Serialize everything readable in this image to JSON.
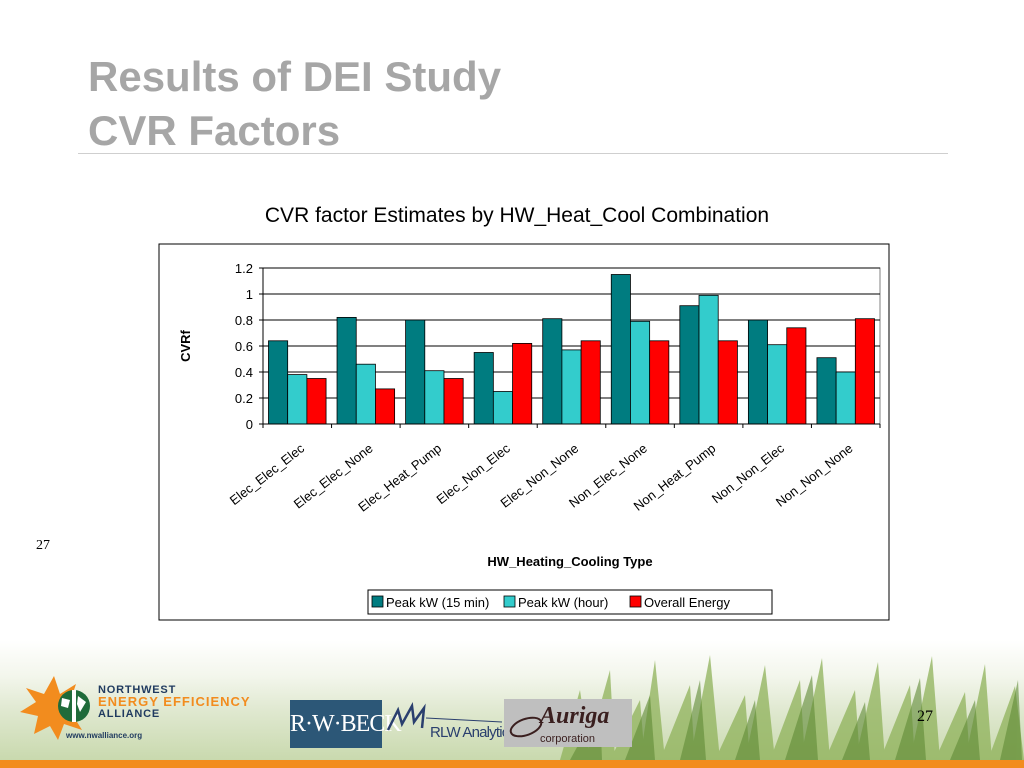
{
  "slide": {
    "title_line1": "Results of DEI Study",
    "title_line2": "CVR Factors",
    "slide_number_left": "27",
    "slide_number_right": "27"
  },
  "chart_data": {
    "type": "bar",
    "title": "CVR factor Estimates by HW_Heat_Cool Combination",
    "xlabel": "HW_Heating_Cooling Type",
    "ylabel": "CVRf",
    "ylim": [
      0,
      1.2
    ],
    "yticks": [
      "1.2",
      "1",
      "0.8",
      "0.6",
      "0.4",
      "0.2",
      "0"
    ],
    "grid": true,
    "legend_position": "bottom",
    "categories": [
      "Elec_Elec_Elec",
      "Elec_Elec_None",
      "Elec_Heat_Pump",
      "Elec_Non_Elec",
      "Elec_Non_None",
      "Non_Elec_None",
      "Non_Heat_Pump",
      "Non_Non_Elec",
      "Non_Non_None"
    ],
    "series": [
      {
        "name": "Peak kW (15 min)",
        "color": "#007c80",
        "values": [
          0.64,
          0.82,
          0.8,
          0.55,
          0.81,
          1.15,
          0.91,
          0.8,
          0.51
        ]
      },
      {
        "name": "Peak kW (hour)",
        "color": "#33cccc",
        "values": [
          0.38,
          0.46,
          0.41,
          0.25,
          0.57,
          0.79,
          0.99,
          0.61,
          0.4
        ]
      },
      {
        "name": "Overall Energy",
        "color": "#ff0000",
        "values": [
          0.35,
          0.27,
          0.35,
          0.62,
          0.64,
          0.64,
          0.64,
          0.74,
          0.81
        ]
      }
    ]
  },
  "footer": {
    "nw_line1": "NORTHWEST",
    "nw_line2": "ENERGY EFFICIENCY",
    "nw_line3": "ALLIANCE",
    "nw_url": "www.nwalliance.org",
    "rwbeck": "R·W·BECK",
    "rlw": "RLW Analytics",
    "auriga_name": "Auriga",
    "auriga_sub": "corporation"
  },
  "colors": {
    "title_gray": "#a6a6a6",
    "accent_orange": "#f28c1e",
    "navy": "#1f3a5f"
  }
}
